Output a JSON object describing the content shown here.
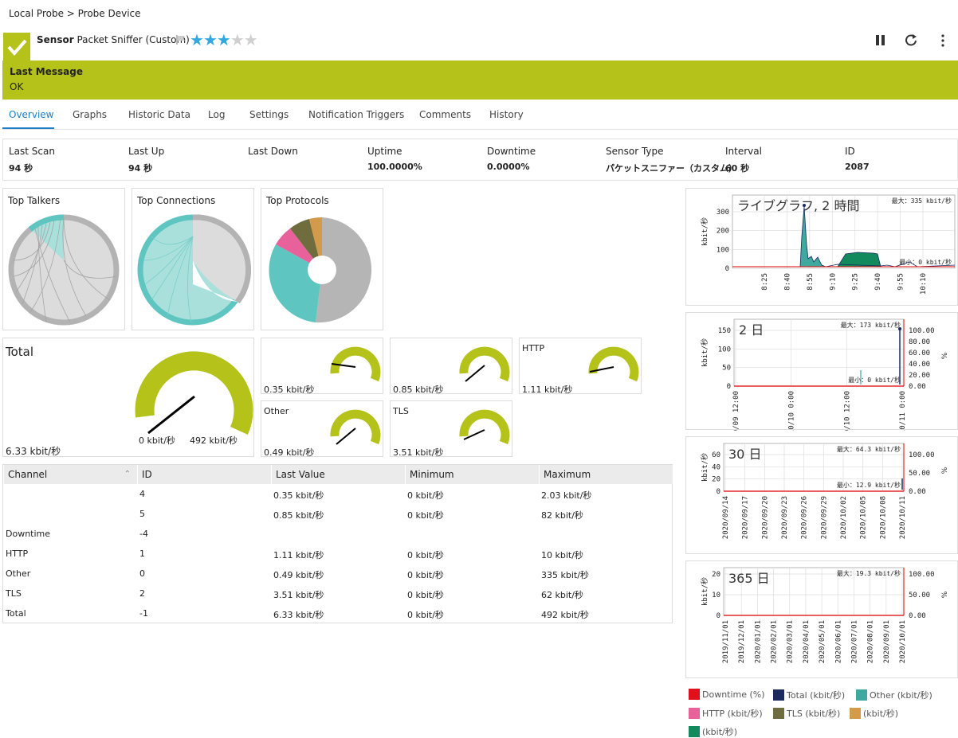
{
  "breadcrumb": "Local Probe > Probe Device",
  "sensor": {
    "kind": "Sensor",
    "name": "Packet Sniffer (Custom)",
    "stars_on": 3,
    "stars_total": 5
  },
  "message": {
    "label": "Last Message",
    "value": "OK"
  },
  "tabs": [
    "Overview",
    "Graphs",
    "Historic Data",
    "Log",
    "Settings",
    "Notification Triggers",
    "Comments",
    "History"
  ],
  "active_tab": "Overview",
  "stats": [
    {
      "label": "Last Scan",
      "value": "94 秒"
    },
    {
      "label": "Last Up",
      "value": "94 秒"
    },
    {
      "label": "Last Down",
      "value": ""
    },
    {
      "label": "Uptime",
      "value": "100.0000%"
    },
    {
      "label": "Downtime",
      "value": "0.0000%"
    },
    {
      "label": "Sensor Type",
      "value": "パケットスニファー（カスタム）"
    },
    {
      "label": "Interval",
      "value": "60 秒"
    },
    {
      "label": "ID",
      "value": "2087"
    }
  ],
  "toplists": {
    "talkers": "Top Talkers",
    "connections": "Top Connections",
    "protocols": "Top Protocols"
  },
  "gauges": {
    "total": {
      "title": "Total",
      "value": "6.33 kbit/秒",
      "min": "0 kbit/秒",
      "max": "492 kbit/秒",
      "fraction": 0.013
    },
    "g4": {
      "title": "",
      "value": "0.35 kbit/秒",
      "fraction": 0.17
    },
    "g5": {
      "title": "",
      "value": "0.85 kbit/秒",
      "fraction": 0.01
    },
    "http": {
      "title": "HTTP",
      "value": "1.11 kbit/秒",
      "fraction": 0.11
    },
    "other": {
      "title": "Other",
      "value": "0.49 kbit/秒",
      "fraction": 0.0015
    },
    "tls": {
      "title": "TLS",
      "value": "3.51 kbit/秒",
      "fraction": 0.057
    }
  },
  "table": {
    "headers": [
      "Channel",
      "ID",
      "Last Value",
      "Minimum",
      "Maximum"
    ],
    "rows": [
      [
        "",
        "4",
        "0.35 kbit/秒",
        "0 kbit/秒",
        "2.03 kbit/秒"
      ],
      [
        "",
        "5",
        "0.85 kbit/秒",
        "0 kbit/秒",
        "82 kbit/秒"
      ],
      [
        "Downtime",
        "-4",
        "",
        "",
        ""
      ],
      [
        "HTTP",
        "1",
        "1.11 kbit/秒",
        "0 kbit/秒",
        "10 kbit/秒"
      ],
      [
        "Other",
        "0",
        "0.49 kbit/秒",
        "0 kbit/秒",
        "335 kbit/秒"
      ],
      [
        "TLS",
        "2",
        "3.51 kbit/秒",
        "0 kbit/秒",
        "62 kbit/秒"
      ],
      [
        "Total",
        "-1",
        "6.33 kbit/秒",
        "0 kbit/秒",
        "492 kbit/秒"
      ]
    ]
  },
  "graphs": {
    "live": {
      "title": "ライブグラフ, 2 時間",
      "ylabel": "kbit/秒",
      "yticks": [
        "300",
        "200",
        "100",
        "0"
      ],
      "xticks": [
        "8:25",
        "8:40",
        "8:55",
        "9:10",
        "9:25",
        "9:40",
        "9:55",
        "10:10"
      ],
      "max": "最大：335 kbit/秒",
      "min": "最小：0 kbit/秒"
    },
    "d2": {
      "title": "2 日",
      "ylabel": "kbit/秒",
      "yticks": [
        "150",
        "100",
        "50",
        "0"
      ],
      "y2ticks": [
        "100.00",
        "80.00",
        "60.00",
        "40.00",
        "20.00",
        "0.00"
      ],
      "y2label": "%",
      "xticks": [
        "10/09 12:00",
        "10/10 0:00",
        "10/10 12:00",
        "10/11 0:00"
      ],
      "max": "最大：173 kbit/秒",
      "min": "最小：0 kbit/秒"
    },
    "d30": {
      "title": "30 日",
      "ylabel": "kbit/秒",
      "yticks": [
        "60",
        "40",
        "20",
        "0"
      ],
      "y2ticks": [
        "100.00",
        "50.00",
        "0.00"
      ],
      "y2label": "%",
      "xticks": [
        "2020/09/14",
        "2020/09/17",
        "2020/09/20",
        "2020/09/23",
        "2020/09/26",
        "2020/09/29",
        "2020/10/02",
        "2020/10/05",
        "2020/10/08",
        "2020/10/11"
      ],
      "max": "最大：64.3 kbit/秒",
      "min": "最小：12.9 kbit/秒"
    },
    "d365": {
      "title": "365 日",
      "ylabel": "kbit/秒",
      "yticks": [
        "20",
        "10",
        "0"
      ],
      "y2ticks": [
        "100.00",
        "50.00",
        "0.00"
      ],
      "y2label": "%",
      "xticks": [
        "2019/11/01",
        "2019/12/01",
        "2020/01/01",
        "2020/02/01",
        "2020/03/01",
        "2020/04/01",
        "2020/05/01",
        "2020/06/01",
        "2020/07/01",
        "2020/08/01",
        "2020/09/01",
        "2020/10/01"
      ],
      "max": "最大：19.3 kbit/秒"
    }
  },
  "legend": [
    {
      "label": "Downtime (%)",
      "color": "#e0101e"
    },
    {
      "label": "Total (kbit/秒)",
      "color": "#1a2a5e"
    },
    {
      "label": "Other (kbit/秒)",
      "color": "#3fa9a0"
    },
    {
      "label": "HTTP (kbit/秒)",
      "color": "#e8619b"
    },
    {
      "label": "TLS (kbit/秒)",
      "color": "#6f6d3d"
    },
    {
      "label": "(kbit/秒)",
      "color": "#d49a4c"
    },
    {
      "label": "(kbit/秒)",
      "color": "#128a5d"
    }
  ],
  "colors": {
    "accent": "#b5c21a",
    "tab": "#1b80c8",
    "pie_grey": "#c6c6c6",
    "teal": "#5ec5c0"
  }
}
